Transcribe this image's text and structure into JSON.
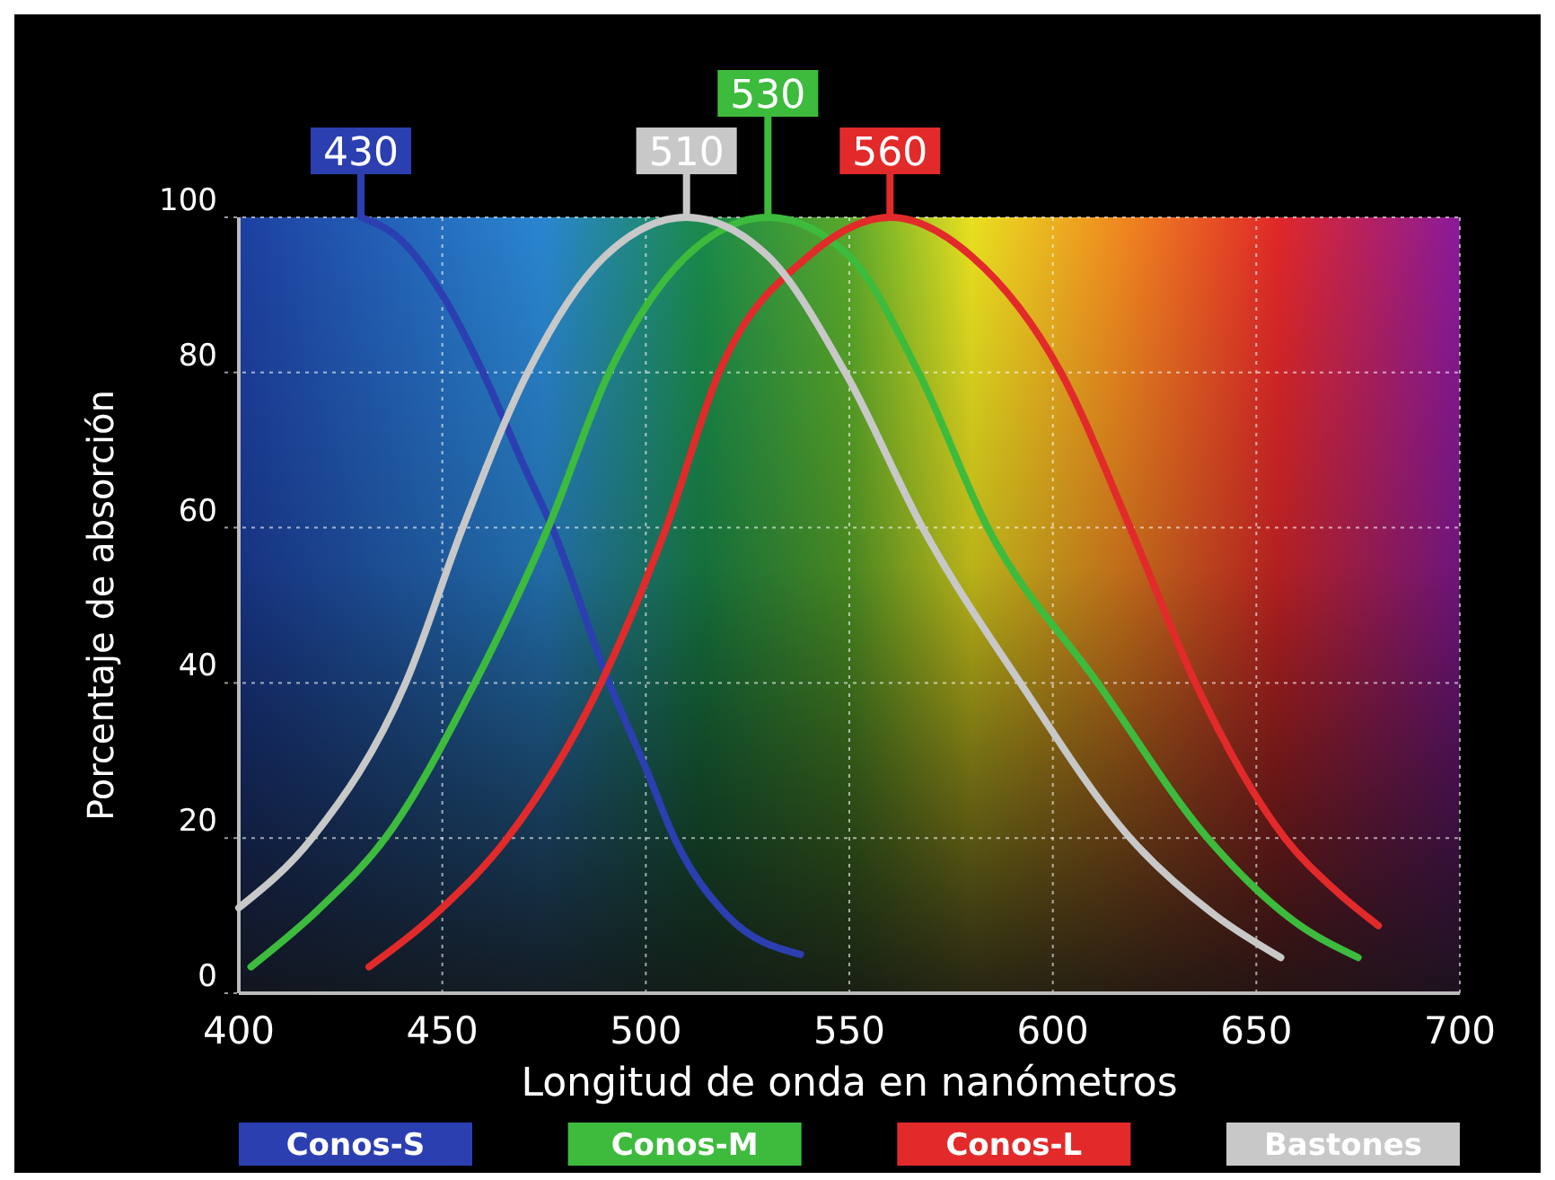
{
  "chart_data": {
    "type": "line",
    "xlabel": "Longitud de onda en nanómetros",
    "ylabel": "Porcentaje de absorción",
    "xlim": [
      400,
      700
    ],
    "xticks": [
      400,
      450,
      500,
      550,
      600,
      650,
      700
    ],
    "ylim": [
      0,
      100
    ],
    "yticks": [
      0,
      20,
      40,
      60,
      80,
      100
    ],
    "grid": true,
    "legend": "bottom",
    "marker": "none",
    "line_style": "solid",
    "series": [
      {
        "name": "Conos-S",
        "color": "#2b3fb0",
        "x": [
          430,
          440,
          450,
          460,
          470,
          477,
          491,
          500,
          507,
          520,
          538
        ],
        "values": [
          100,
          97,
          90,
          80,
          68,
          60,
          40,
          29,
          20,
          10,
          5
        ]
      },
      {
        "name": "Conos-M",
        "color": "#3dbb3d",
        "x": [
          403,
          420,
          436,
          458,
          476,
          491,
          510,
          530,
          550,
          567,
          584,
          611,
          638,
          660,
          675
        ],
        "values": [
          3.4,
          11,
          20,
          40,
          60,
          80,
          95,
          100,
          95,
          80,
          60,
          40,
          20,
          9,
          4.6
        ]
      },
      {
        "name": "Conos-L",
        "color": "#e22a2a",
        "x": [
          432,
          450,
          466,
          489,
          505,
          518,
          540,
          560,
          580,
          602,
          619,
          635,
          657,
          670,
          680
        ],
        "values": [
          3.4,
          11,
          20,
          40,
          60,
          80,
          95,
          100,
          95,
          80,
          60,
          40,
          20,
          13,
          8.7
        ]
      },
      {
        "name": "Bastones",
        "color": "#c8c8c8",
        "x": [
          400,
          418,
          441,
          455,
          471,
          490,
          510,
          530,
          549,
          568,
          592,
          619,
          640,
          656
        ],
        "values": [
          11,
          20,
          40,
          60,
          80,
          95,
          100,
          95,
          80,
          60,
          40,
          20,
          10,
          4.6
        ]
      }
    ],
    "annotations": [
      {
        "text": "430",
        "x": 430,
        "y": 100
      },
      {
        "text": "510",
        "x": 510,
        "y": 100
      },
      {
        "text": "530",
        "x": 530,
        "y": 100
      },
      {
        "text": "560",
        "x": 560,
        "y": 100
      }
    ]
  }
}
